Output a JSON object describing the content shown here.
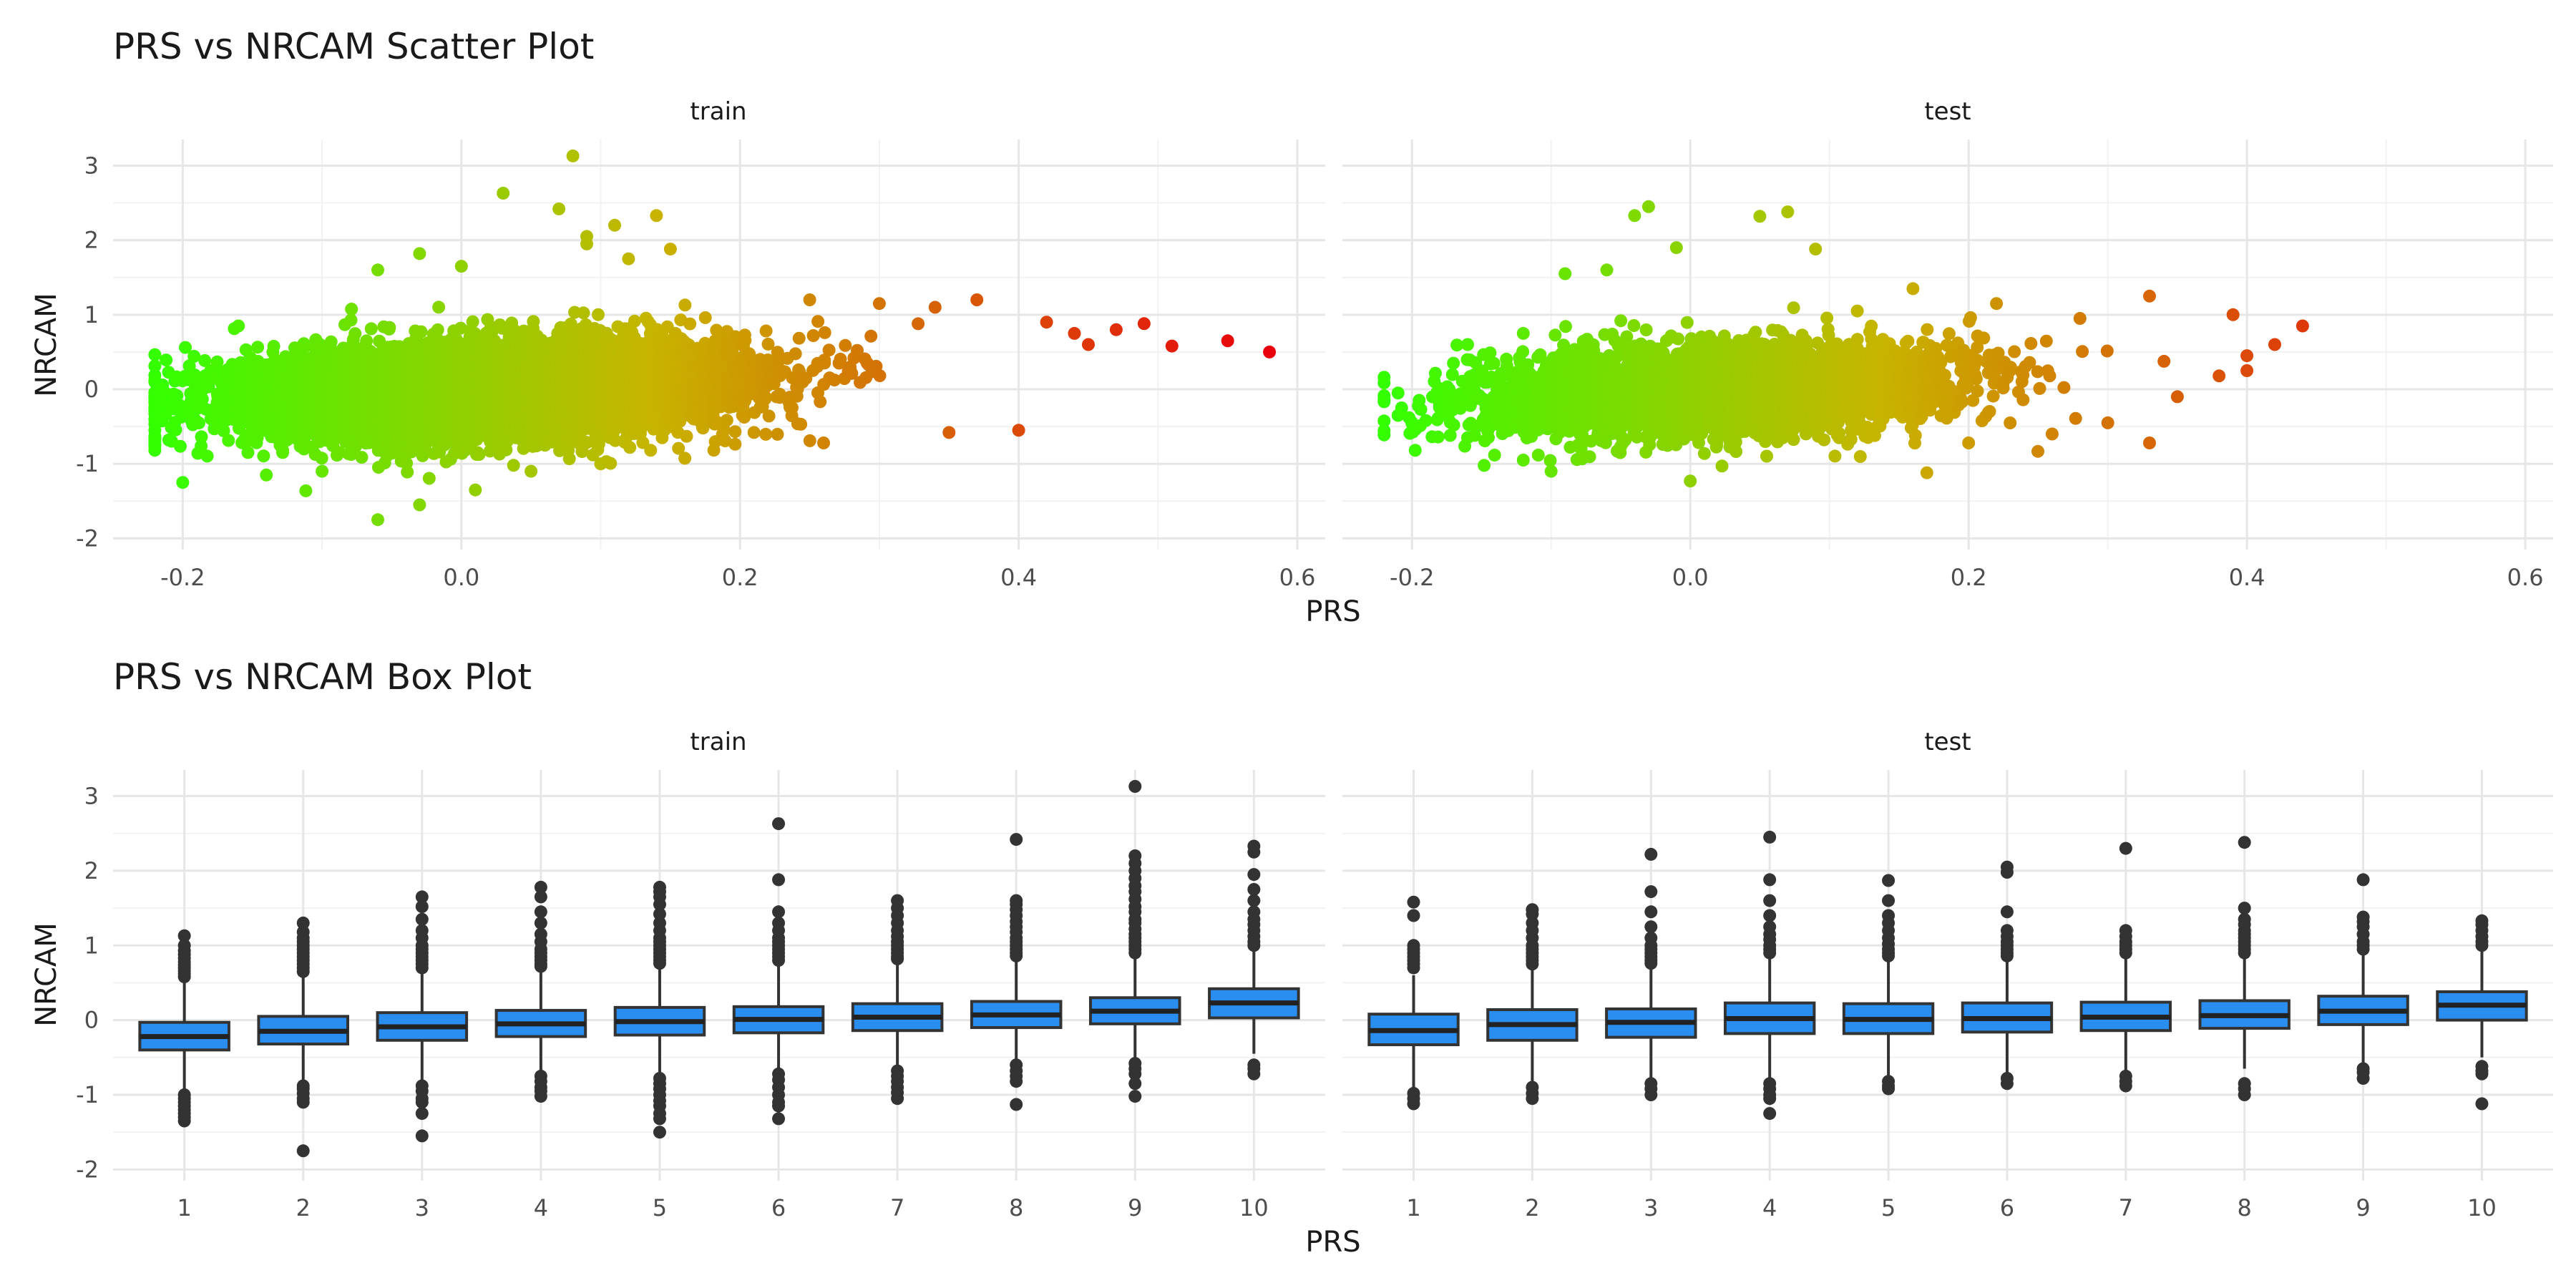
{
  "chart_data": [
    {
      "type": "scatter",
      "title": "PRS vs NRCAM Scatter Plot",
      "xlabel": "PRS",
      "ylabel": "NRCAM",
      "xlim": [
        -0.25,
        0.62
      ],
      "ylim": [
        -2.15,
        3.35
      ],
      "x_ticks": [
        -0.2,
        0.0,
        0.2,
        0.4,
        0.6
      ],
      "x_tick_labels": [
        "-0.2",
        "0.0",
        "0.2",
        "0.4",
        "0.6"
      ],
      "y_ticks": [
        -2,
        -1,
        0,
        1,
        2,
        3
      ],
      "y_tick_labels": [
        "-2",
        "-1",
        "0",
        "1",
        "2",
        "3"
      ],
      "color_scale": {
        "low": "#33ff00",
        "mid": "#c8b400",
        "high": "#e8000d",
        "range": [
          -0.22,
          0.58
        ]
      },
      "grid": true,
      "panels": [
        {
          "name": "train",
          "n_points": 9000,
          "outliers": [
            [
              0.08,
              3.13
            ],
            [
              0.03,
              2.63
            ],
            [
              0.07,
              2.42
            ],
            [
              0.14,
              2.33
            ],
            [
              0.11,
              2.2
            ],
            [
              0.09,
              2.05
            ],
            [
              0.09,
              1.95
            ],
            [
              0.15,
              1.88
            ],
            [
              -0.03,
              1.82
            ],
            [
              -0.06,
              1.6
            ],
            [
              0.58,
              0.5
            ],
            [
              0.55,
              0.65
            ],
            [
              0.51,
              0.58
            ],
            [
              0.49,
              0.88
            ],
            [
              0.47,
              0.8
            ],
            [
              0.45,
              0.6
            ],
            [
              0.44,
              0.75
            ],
            [
              0.4,
              -0.55
            ],
            [
              0.35,
              -0.58
            ],
            [
              0.21,
              -0.58
            ],
            [
              -0.22,
              -0.55
            ],
            [
              -0.2,
              -1.25
            ],
            [
              -0.21,
              -0.68
            ],
            [
              -0.06,
              -1.75
            ],
            [
              -0.03,
              -1.55
            ],
            [
              0.01,
              -1.35
            ],
            [
              0.05,
              -1.1
            ],
            [
              -0.14,
              -1.15
            ],
            [
              -0.18,
              0.25
            ],
            [
              -0.16,
              0.85
            ],
            [
              0.0,
              1.65
            ],
            [
              0.12,
              1.75
            ],
            [
              0.25,
              1.2
            ],
            [
              0.3,
              1.15
            ],
            [
              0.34,
              1.1
            ],
            [
              0.37,
              1.2
            ],
            [
              0.42,
              0.9
            ],
            [
              0.26,
              -0.72
            ],
            [
              0.1,
              -1.0
            ],
            [
              -0.1,
              -1.1
            ]
          ]
        },
        {
          "name": "test",
          "n_points": 3500,
          "outliers": [
            [
              -0.03,
              2.45
            ],
            [
              -0.04,
              2.33
            ],
            [
              0.05,
              2.32
            ],
            [
              0.07,
              2.38
            ],
            [
              0.09,
              1.88
            ],
            [
              -0.01,
              1.9
            ],
            [
              -0.06,
              1.6
            ],
            [
              -0.09,
              1.55
            ],
            [
              0.16,
              1.35
            ],
            [
              0.22,
              1.15
            ],
            [
              0.33,
              1.25
            ],
            [
              0.39,
              1.0
            ],
            [
              0.44,
              0.85
            ],
            [
              0.42,
              0.6
            ],
            [
              0.4,
              0.45
            ],
            [
              0.4,
              0.25
            ],
            [
              0.38,
              0.18
            ],
            [
              -0.21,
              -0.05
            ],
            [
              -0.21,
              -0.35
            ],
            [
              -0.19,
              -0.42
            ],
            [
              -0.17,
              -0.48
            ],
            [
              -0.16,
              -0.65
            ],
            [
              -0.12,
              -0.95
            ],
            [
              -0.1,
              -1.1
            ],
            [
              0.0,
              -1.23
            ],
            [
              0.17,
              -1.12
            ],
            [
              0.2,
              -0.72
            ],
            [
              0.33,
              -0.72
            ],
            [
              0.3,
              -0.45
            ],
            [
              0.26,
              -0.6
            ],
            [
              -0.16,
              0.6
            ],
            [
              -0.12,
              0.75
            ],
            [
              0.12,
              1.05
            ],
            [
              0.28,
              0.95
            ],
            [
              0.35,
              -0.1
            ]
          ]
        }
      ]
    },
    {
      "type": "box",
      "title": "PRS vs NRCAM Box Plot",
      "xlabel": "PRS",
      "ylabel": "NRCAM",
      "ylim": [
        -2.15,
        3.35
      ],
      "categories": [
        "1",
        "2",
        "3",
        "4",
        "5",
        "6",
        "7",
        "8",
        "9",
        "10"
      ],
      "y_ticks": [
        -2,
        -1,
        0,
        1,
        2,
        3
      ],
      "y_tick_labels": [
        "-2",
        "-1",
        "0",
        "1",
        "2",
        "3"
      ],
      "box_fill": "#2a8ef0",
      "grid": true,
      "panels": [
        {
          "name": "train",
          "boxes": [
            {
              "q1": -0.4,
              "median": -0.22,
              "q3": -0.03,
              "lo": -0.95,
              "hi": 0.55,
              "outliers": [
                1.13,
                1.0,
                0.93,
                0.88,
                0.83,
                0.78,
                0.74,
                0.7,
                0.66,
                0.62,
                0.58,
                -1.0,
                -1.05,
                -1.1,
                -1.15,
                -1.2,
                -1.25,
                -1.3,
                -1.35
              ]
            },
            {
              "q1": -0.32,
              "median": -0.15,
              "q3": 0.05,
              "lo": -0.85,
              "hi": 0.6,
              "outliers": [
                1.3,
                1.18,
                1.1,
                1.05,
                1.0,
                0.95,
                0.9,
                0.85,
                0.8,
                0.75,
                0.7,
                0.65,
                -0.88,
                -0.92,
                -0.98,
                -1.05,
                -1.1,
                -1.75
              ]
            },
            {
              "q1": -0.27,
              "median": -0.09,
              "q3": 0.1,
              "lo": -0.82,
              "hi": 0.65,
              "outliers": [
                1.65,
                1.52,
                1.35,
                1.2,
                1.1,
                1.0,
                0.95,
                0.9,
                0.85,
                0.8,
                0.75,
                0.7,
                -0.88,
                -0.95,
                -1.05,
                -1.1,
                -1.25,
                -1.55
              ]
            },
            {
              "q1": -0.22,
              "median": -0.05,
              "q3": 0.13,
              "lo": -0.7,
              "hi": 0.68,
              "outliers": [
                1.78,
                1.65,
                1.45,
                1.3,
                1.15,
                1.05,
                0.95,
                0.9,
                0.85,
                0.8,
                0.75,
                0.72,
                -0.75,
                -0.82,
                -0.9,
                -0.95,
                -1.02
              ]
            },
            {
              "q1": -0.2,
              "median": -0.02,
              "q3": 0.17,
              "lo": -0.72,
              "hi": 0.72,
              "outliers": [
                1.78,
                1.72,
                1.65,
                1.55,
                1.42,
                1.3,
                1.2,
                1.1,
                1.05,
                1.0,
                0.95,
                0.9,
                0.85,
                0.8,
                0.76,
                -0.78,
                -0.85,
                -0.92,
                -1.0,
                -1.08,
                -1.15,
                -1.25,
                -1.32,
                -1.5
              ]
            },
            {
              "q1": -0.17,
              "median": 0.01,
              "q3": 0.18,
              "lo": -0.68,
              "hi": 0.75,
              "outliers": [
                2.63,
                1.88,
                1.45,
                1.3,
                1.2,
                1.1,
                1.05,
                1.0,
                0.95,
                0.9,
                0.85,
                0.8,
                -0.72,
                -0.8,
                -0.9,
                -1.0,
                -1.1,
                -1.15,
                -1.32
              ]
            },
            {
              "q1": -0.14,
              "median": 0.04,
              "q3": 0.22,
              "lo": -0.65,
              "hi": 0.78,
              "outliers": [
                1.6,
                1.5,
                1.4,
                1.3,
                1.2,
                1.12,
                1.05,
                1.0,
                0.95,
                0.9,
                0.85,
                0.82,
                -0.68,
                -0.75,
                -0.82,
                -0.9,
                -0.97,
                -1.05
              ]
            },
            {
              "q1": -0.1,
              "median": 0.07,
              "q3": 0.25,
              "lo": -0.58,
              "hi": 0.8,
              "outliers": [
                2.42,
                1.6,
                1.55,
                1.48,
                1.4,
                1.32,
                1.25,
                1.18,
                1.1,
                1.05,
                1.0,
                0.95,
                0.9,
                0.86,
                -0.6,
                -0.68,
                -0.75,
                -0.82,
                -1.13
              ]
            },
            {
              "q1": -0.05,
              "median": 0.12,
              "q3": 0.3,
              "lo": -0.52,
              "hi": 0.85,
              "outliers": [
                3.13,
                2.2,
                2.1,
                2.0,
                1.9,
                1.8,
                1.72,
                1.62,
                1.52,
                1.45,
                1.35,
                1.3,
                1.22,
                1.15,
                1.1,
                1.05,
                1.0,
                0.95,
                0.9,
                -0.58,
                -0.65,
                -0.72,
                -0.85,
                -1.02
              ]
            },
            {
              "q1": 0.03,
              "median": 0.23,
              "q3": 0.42,
              "lo": -0.45,
              "hi": 0.95,
              "outliers": [
                2.33,
                2.25,
                1.95,
                1.75,
                1.6,
                1.45,
                1.35,
                1.28,
                1.2,
                1.12,
                1.05,
                1.0,
                -0.6,
                -0.65,
                -0.72
              ]
            }
          ]
        },
        {
          "name": "test",
          "boxes": [
            {
              "q1": -0.33,
              "median": -0.14,
              "q3": 0.08,
              "lo": -0.9,
              "hi": 0.6,
              "outliers": [
                1.58,
                1.4,
                1.0,
                0.95,
                0.9,
                0.85,
                0.8,
                0.75,
                0.7,
                -0.98,
                -1.05,
                -1.12
              ]
            },
            {
              "q1": -0.27,
              "median": -0.06,
              "q3": 0.14,
              "lo": -0.85,
              "hi": 0.7,
              "outliers": [
                1.48,
                1.42,
                1.3,
                1.2,
                1.1,
                1.0,
                0.95,
                0.9,
                0.85,
                0.8,
                0.75,
                -0.9,
                -0.98,
                -1.05
              ]
            },
            {
              "q1": -0.23,
              "median": -0.03,
              "q3": 0.15,
              "lo": -0.8,
              "hi": 0.72,
              "outliers": [
                2.22,
                1.72,
                1.45,
                1.25,
                1.1,
                1.0,
                0.95,
                0.9,
                0.85,
                0.8,
                0.76,
                -0.85,
                -0.92,
                -1.0
              ]
            },
            {
              "q1": -0.18,
              "median": 0.02,
              "q3": 0.23,
              "lo": -0.8,
              "hi": 0.85,
              "outliers": [
                2.45,
                1.88,
                1.6,
                1.4,
                1.25,
                1.15,
                1.08,
                1.0,
                0.95,
                0.9,
                -0.85,
                -0.92,
                -1.0,
                -1.05,
                -1.25
              ]
            },
            {
              "q1": -0.18,
              "median": 0.01,
              "q3": 0.22,
              "lo": -0.8,
              "hi": 0.82,
              "outliers": [
                1.87,
                1.6,
                1.4,
                1.3,
                1.2,
                1.1,
                1.02,
                0.95,
                0.9,
                0.86,
                -0.82,
                -0.88,
                -0.92
              ]
            },
            {
              "q1": -0.16,
              "median": 0.02,
              "q3": 0.23,
              "lo": -0.75,
              "hi": 0.82,
              "outliers": [
                2.05,
                1.98,
                1.45,
                1.2,
                1.12,
                1.05,
                1.0,
                0.95,
                0.9,
                0.86,
                -0.78,
                -0.85
              ]
            },
            {
              "q1": -0.14,
              "median": 0.04,
              "q3": 0.24,
              "lo": -0.72,
              "hi": 0.82,
              "outliers": [
                2.3,
                1.2,
                1.12,
                1.05,
                1.0,
                0.95,
                0.9,
                -0.75,
                -0.82,
                -0.88
              ]
            },
            {
              "q1": -0.11,
              "median": 0.06,
              "q3": 0.26,
              "lo": -0.65,
              "hi": 0.85,
              "outliers": [
                2.38,
                1.5,
                1.35,
                1.28,
                1.2,
                1.15,
                1.1,
                1.05,
                1.0,
                0.95,
                0.9,
                -0.85,
                -0.92,
                -1.0
              ]
            },
            {
              "q1": -0.06,
              "median": 0.12,
              "q3": 0.32,
              "lo": -0.6,
              "hi": 0.92,
              "outliers": [
                1.88,
                1.38,
                1.32,
                1.25,
                1.15,
                1.05,
                1.0,
                0.95,
                -0.65,
                -0.7,
                -0.78
              ]
            },
            {
              "q1": 0.0,
              "median": 0.2,
              "q3": 0.38,
              "lo": -0.5,
              "hi": 0.98,
              "outliers": [
                1.33,
                1.28,
                1.2,
                1.12,
                1.05,
                1.0,
                -0.62,
                -0.68,
                -0.72,
                -1.12
              ]
            }
          ]
        }
      ]
    }
  ]
}
